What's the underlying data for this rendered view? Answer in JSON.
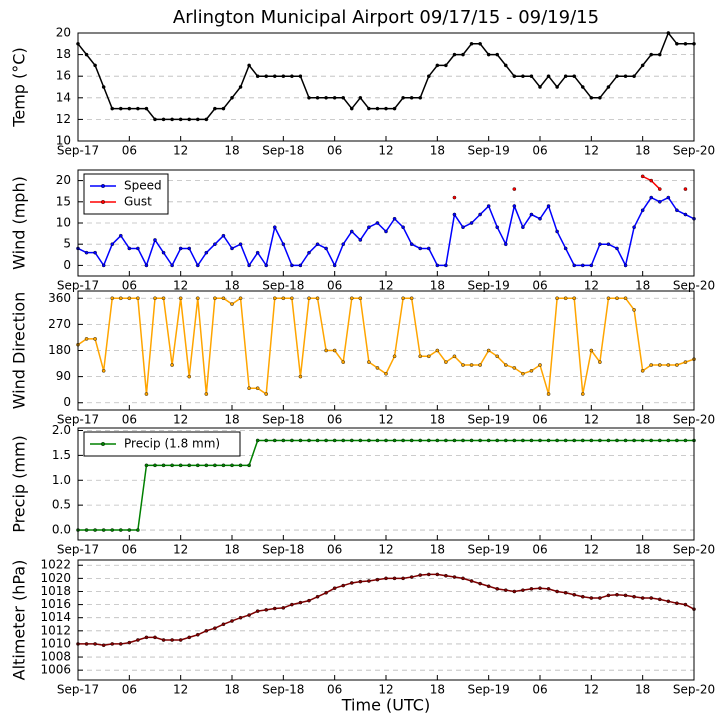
{
  "chart_data": [
    {
      "type": "line",
      "title": "Arlington Municipal Airport 09/17/15 - 09/19/15",
      "ylabel": "Temp (°C)",
      "x": [
        0,
        1,
        2,
        3,
        4,
        5,
        6,
        7,
        8,
        9,
        10,
        11,
        12,
        13,
        14,
        15,
        16,
        17,
        18,
        19,
        20,
        21,
        22,
        23,
        24,
        25,
        26,
        27,
        28,
        29,
        30,
        31,
        32,
        33,
        34,
        35,
        36,
        37,
        38,
        39,
        40,
        41,
        42,
        43,
        44,
        45,
        46,
        47,
        48,
        49,
        50,
        51,
        52,
        53,
        54,
        55,
        56,
        57,
        58,
        59,
        60,
        61,
        62,
        63,
        64,
        65,
        66,
        67,
        68,
        69,
        70,
        71,
        72
      ],
      "series": [
        {
          "name": "Temp",
          "color": "#000000",
          "values": [
            19,
            18,
            17,
            15,
            13,
            13,
            13,
            13,
            13,
            12,
            12,
            12,
            12,
            12,
            12,
            12,
            13,
            13,
            14,
            15,
            17,
            16,
            16,
            16,
            16,
            16,
            16,
            14,
            14,
            14,
            14,
            14,
            13,
            14,
            13,
            13,
            13,
            13,
            14,
            14,
            14,
            16,
            17,
            17,
            18,
            18,
            19,
            19,
            18,
            18,
            17,
            16,
            16,
            16,
            15,
            16,
            15,
            16,
            16,
            15,
            14,
            14,
            15,
            16,
            16,
            16,
            17,
            18,
            18,
            20,
            19,
            19,
            19
          ]
        }
      ],
      "xlim": [
        0,
        72
      ],
      "xticks": [
        {
          "value": 0,
          "label": "Sep-17"
        },
        {
          "value": 6,
          "label": "06"
        },
        12,
        18,
        {
          "value": 24,
          "label": "Sep-18"
        },
        {
          "value": 30,
          "label": "06"
        },
        {
          "value": 36,
          "label": "12"
        },
        {
          "value": 42,
          "label": "18"
        },
        {
          "value": 48,
          "label": "Sep-19"
        },
        {
          "value": 54,
          "label": "06"
        },
        {
          "value": 60,
          "label": "12"
        },
        {
          "value": 66,
          "label": "18"
        },
        {
          "value": 72,
          "label": "Sep-20"
        }
      ],
      "ylim": [
        10,
        20
      ],
      "yticks": [
        10,
        12,
        14,
        16,
        18,
        20
      ],
      "grid": true
    },
    {
      "type": "line",
      "ylabel": "Wind (mph)",
      "legend": "upper left",
      "x": [
        0,
        1,
        2,
        3,
        4,
        5,
        6,
        7,
        8,
        9,
        10,
        11,
        12,
        13,
        14,
        15,
        16,
        17,
        18,
        19,
        20,
        21,
        22,
        23,
        24,
        25,
        26,
        27,
        28,
        29,
        30,
        31,
        32,
        33,
        34,
        35,
        36,
        37,
        38,
        39,
        40,
        41,
        42,
        43,
        44,
        45,
        46,
        47,
        48,
        49,
        50,
        51,
        52,
        53,
        54,
        55,
        56,
        57,
        58,
        59,
        60,
        61,
        62,
        63,
        64,
        65,
        66,
        67,
        68,
        69,
        70,
        71,
        72
      ],
      "series": [
        {
          "name": "Speed",
          "color": "#0000ff",
          "values": [
            4,
            3,
            3,
            0,
            5,
            7,
            4,
            4,
            0,
            6,
            3,
            0,
            4,
            4,
            0,
            3,
            5,
            7,
            4,
            5,
            0,
            3,
            0,
            9,
            5,
            0,
            0,
            3,
            5,
            4,
            0,
            5,
            8,
            6,
            9,
            10,
            8,
            11,
            9,
            5,
            4,
            4,
            0,
            0,
            12,
            9,
            10,
            12,
            14,
            9,
            5,
            14,
            9,
            12,
            11,
            14,
            8,
            4,
            0,
            0,
            0,
            5,
            5,
            4,
            0,
            9,
            13,
            16,
            15,
            16,
            13,
            12,
            11
          ]
        },
        {
          "name": "Gust",
          "color": "#ff0000",
          "values": [
            null,
            null,
            null,
            null,
            null,
            null,
            null,
            null,
            null,
            null,
            null,
            null,
            null,
            null,
            null,
            null,
            null,
            null,
            null,
            null,
            null,
            null,
            null,
            null,
            null,
            null,
            null,
            null,
            null,
            null,
            null,
            null,
            null,
            null,
            null,
            null,
            null,
            null,
            null,
            null,
            null,
            null,
            null,
            null,
            16,
            null,
            null,
            null,
            null,
            null,
            null,
            18,
            null,
            null,
            null,
            null,
            null,
            null,
            null,
            null,
            null,
            null,
            null,
            null,
            null,
            null,
            21,
            20,
            18,
            null,
            null,
            18,
            null
          ]
        }
      ],
      "xlim": [
        0,
        72
      ],
      "xticks": [
        {
          "value": 0,
          "label": "Sep-17"
        },
        {
          "value": 6,
          "label": "06"
        },
        12,
        18,
        {
          "value": 24,
          "label": "Sep-18"
        },
        {
          "value": 30,
          "label": "06"
        },
        {
          "value": 36,
          "label": "12"
        },
        {
          "value": 42,
          "label": "18"
        },
        {
          "value": 48,
          "label": "Sep-19"
        },
        {
          "value": 54,
          "label": "06"
        },
        {
          "value": 60,
          "label": "12"
        },
        {
          "value": 66,
          "label": "18"
        },
        {
          "value": 72,
          "label": "Sep-20"
        }
      ],
      "ylim": [
        -2.5,
        22.5
      ],
      "yticks": [
        0,
        5,
        10,
        15,
        20
      ],
      "grid": true
    },
    {
      "type": "line",
      "ylabel": "Wind Direction",
      "x": [
        0,
        1,
        2,
        3,
        4,
        5,
        6,
        7,
        8,
        9,
        10,
        11,
        12,
        13,
        14,
        15,
        16,
        17,
        18,
        19,
        20,
        21,
        22,
        23,
        24,
        25,
        26,
        27,
        28,
        29,
        30,
        31,
        32,
        33,
        34,
        35,
        36,
        37,
        38,
        39,
        40,
        41,
        42,
        43,
        44,
        45,
        46,
        47,
        48,
        49,
        50,
        51,
        52,
        53,
        54,
        55,
        56,
        57,
        58,
        59,
        60,
        61,
        62,
        63,
        64,
        65,
        66,
        67,
        68,
        69,
        70,
        71,
        72
      ],
      "series": [
        {
          "name": "Direction",
          "color": "#ffa500",
          "values": [
            200,
            220,
            220,
            110,
            360,
            360,
            360,
            360,
            30,
            360,
            360,
            130,
            360,
            90,
            360,
            30,
            360,
            360,
            340,
            360,
            50,
            50,
            30,
            360,
            360,
            360,
            90,
            360,
            360,
            180,
            180,
            140,
            360,
            360,
            140,
            120,
            100,
            160,
            360,
            360,
            160,
            160,
            180,
            140,
            160,
            130,
            130,
            130,
            180,
            160,
            130,
            120,
            100,
            110,
            130,
            30,
            360,
            360,
            360,
            30,
            180,
            140,
            360,
            360,
            360,
            320,
            110,
            130,
            130,
            130,
            130,
            140,
            150
          ]
        }
      ],
      "xlim": [
        0,
        72
      ],
      "xticks": [
        {
          "value": 0,
          "label": "Sep-17"
        },
        {
          "value": 6,
          "label": "06"
        },
        12,
        18,
        {
          "value": 24,
          "label": "Sep-18"
        },
        {
          "value": 30,
          "label": "06"
        },
        {
          "value": 36,
          "label": "12"
        },
        {
          "value": 42,
          "label": "18"
        },
        {
          "value": 48,
          "label": "Sep-19"
        },
        {
          "value": 54,
          "label": "06"
        },
        {
          "value": 60,
          "label": "12"
        },
        {
          "value": 66,
          "label": "18"
        },
        {
          "value": 72,
          "label": "Sep-20"
        }
      ],
      "ylim": [
        -25,
        385
      ],
      "yticks": [
        0,
        90,
        180,
        270,
        360
      ],
      "grid": true
    },
    {
      "type": "line",
      "ylabel": "Precip (mm)",
      "legend": "upper left",
      "x": [
        0,
        1,
        2,
        3,
        4,
        5,
        6,
        7,
        8,
        9,
        10,
        11,
        12,
        13,
        14,
        15,
        16,
        17,
        18,
        19,
        20,
        21,
        22,
        23,
        24,
        25,
        26,
        27,
        28,
        29,
        30,
        31,
        32,
        33,
        34,
        35,
        36,
        37,
        38,
        39,
        40,
        41,
        42,
        43,
        44,
        45,
        46,
        47,
        48,
        49,
        50,
        51,
        52,
        53,
        54,
        55,
        56,
        57,
        58,
        59,
        60,
        61,
        62,
        63,
        64,
        65,
        66,
        67,
        68,
        69,
        70,
        71,
        72
      ],
      "series": [
        {
          "name": "Precip (1.8 mm)",
          "color": "#008000",
          "values": [
            0,
            0,
            0,
            0,
            0,
            0,
            0,
            0,
            1.3,
            1.3,
            1.3,
            1.3,
            1.3,
            1.3,
            1.3,
            1.3,
            1.3,
            1.3,
            1.3,
            1.3,
            1.3,
            1.8,
            1.8,
            1.8,
            1.8,
            1.8,
            1.8,
            1.8,
            1.8,
            1.8,
            1.8,
            1.8,
            1.8,
            1.8,
            1.8,
            1.8,
            1.8,
            1.8,
            1.8,
            1.8,
            1.8,
            1.8,
            1.8,
            1.8,
            1.8,
            1.8,
            1.8,
            1.8,
            1.8,
            1.8,
            1.8,
            1.8,
            1.8,
            1.8,
            1.8,
            1.8,
            1.8,
            1.8,
            1.8,
            1.8,
            1.8,
            1.8,
            1.8,
            1.8,
            1.8,
            1.8,
            1.8,
            1.8,
            1.8,
            1.8,
            1.8,
            1.8,
            1.8
          ]
        }
      ],
      "xlim": [
        0,
        72
      ],
      "xticks": [
        {
          "value": 0,
          "label": "Sep-17"
        },
        {
          "value": 6,
          "label": "06"
        },
        12,
        18,
        {
          "value": 24,
          "label": "Sep-18"
        },
        {
          "value": 30,
          "label": "06"
        },
        {
          "value": 36,
          "label": "12"
        },
        {
          "value": 42,
          "label": "18"
        },
        {
          "value": 48,
          "label": "Sep-19"
        },
        {
          "value": 54,
          "label": "06"
        },
        {
          "value": 60,
          "label": "12"
        },
        {
          "value": 66,
          "label": "18"
        },
        {
          "value": 72,
          "label": "Sep-20"
        }
      ],
      "ylim": [
        -0.2,
        2.05
      ],
      "yticks": [
        {
          "value": 0,
          "label": "0.0"
        },
        0.5,
        {
          "value": 1,
          "label": "1.0"
        },
        1.5,
        {
          "value": 2,
          "label": "2.0"
        }
      ],
      "grid": true
    },
    {
      "type": "line",
      "ylabel": "Altimeter (hPa)",
      "xlabel": "Time (UTC)",
      "x": [
        0,
        1,
        2,
        3,
        4,
        5,
        6,
        7,
        8,
        9,
        10,
        11,
        12,
        13,
        14,
        15,
        16,
        17,
        18,
        19,
        20,
        21,
        22,
        23,
        24,
        25,
        26,
        27,
        28,
        29,
        30,
        31,
        32,
        33,
        34,
        35,
        36,
        37,
        38,
        39,
        40,
        41,
        42,
        43,
        44,
        45,
        46,
        47,
        48,
        49,
        50,
        51,
        52,
        53,
        54,
        55,
        56,
        57,
        58,
        59,
        60,
        61,
        62,
        63,
        64,
        65,
        66,
        67,
        68,
        69,
        70,
        71,
        72
      ],
      "series": [
        {
          "name": "Altimeter",
          "color": "#800000",
          "values": [
            1010,
            1010,
            1010,
            1009.8,
            1010,
            1010,
            1010.2,
            1010.6,
            1011,
            1011,
            1010.6,
            1010.6,
            1010.6,
            1011,
            1011.4,
            1012,
            1012.4,
            1013,
            1013.5,
            1014,
            1014.4,
            1015,
            1015.2,
            1015.4,
            1015.5,
            1016,
            1016.3,
            1016.6,
            1017.2,
            1017.8,
            1018.5,
            1018.9,
            1019.3,
            1019.5,
            1019.6,
            1019.8,
            1020,
            1020,
            1020,
            1020.2,
            1020.5,
            1020.6,
            1020.6,
            1020.4,
            1020.2,
            1020,
            1019.6,
            1019.2,
            1018.8,
            1018.4,
            1018.2,
            1018,
            1018.2,
            1018.4,
            1018.5,
            1018.4,
            1018,
            1017.8,
            1017.5,
            1017.2,
            1017,
            1017,
            1017.4,
            1017.5,
            1017.4,
            1017.2,
            1017,
            1017,
            1016.8,
            1016.5,
            1016.2,
            1016,
            1015.3
          ]
        }
      ],
      "xlim": [
        0,
        72
      ],
      "xticks": [
        {
          "value": 0,
          "label": "Sep-17"
        },
        {
          "value": 6,
          "label": "06"
        },
        12,
        18,
        {
          "value": 24,
          "label": "Sep-18"
        },
        {
          "value": 30,
          "label": "06"
        },
        {
          "value": 36,
          "label": "12"
        },
        {
          "value": 42,
          "label": "18"
        },
        {
          "value": 48,
          "label": "Sep-19"
        },
        {
          "value": 54,
          "label": "06"
        },
        {
          "value": 60,
          "label": "12"
        },
        {
          "value": 66,
          "label": "18"
        },
        {
          "value": 72,
          "label": "Sep-20"
        }
      ],
      "ylim": [
        1004.5,
        1022.8
      ],
      "yticks": [
        1006,
        1008,
        1010,
        1012,
        1014,
        1016,
        1018,
        1020,
        1022
      ],
      "grid": true
    }
  ]
}
